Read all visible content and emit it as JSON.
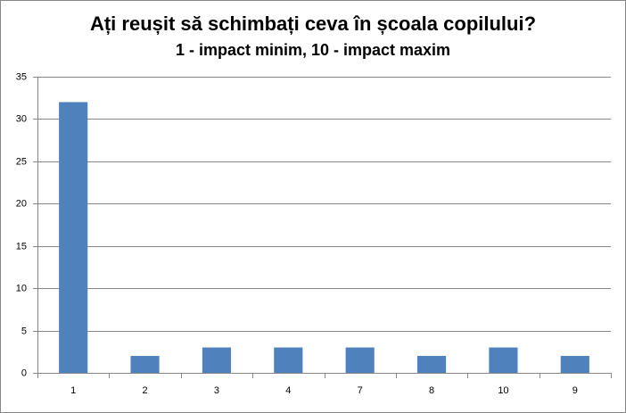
{
  "chart_data": {
    "type": "bar",
    "title": "Ați reușit să schimbați ceva în școala copilului?",
    "subtitle": "1 - impact minim, 10 - impact maxim",
    "categories": [
      "1",
      "2",
      "3",
      "4",
      "7",
      "8",
      "10",
      "9"
    ],
    "values": [
      32,
      2,
      3,
      3,
      3,
      2,
      3,
      2
    ],
    "color": "#4f81bd",
    "ylim": [
      0,
      35
    ],
    "yticks": [
      0,
      5,
      10,
      15,
      20,
      25,
      30,
      35
    ],
    "grid": true
  }
}
